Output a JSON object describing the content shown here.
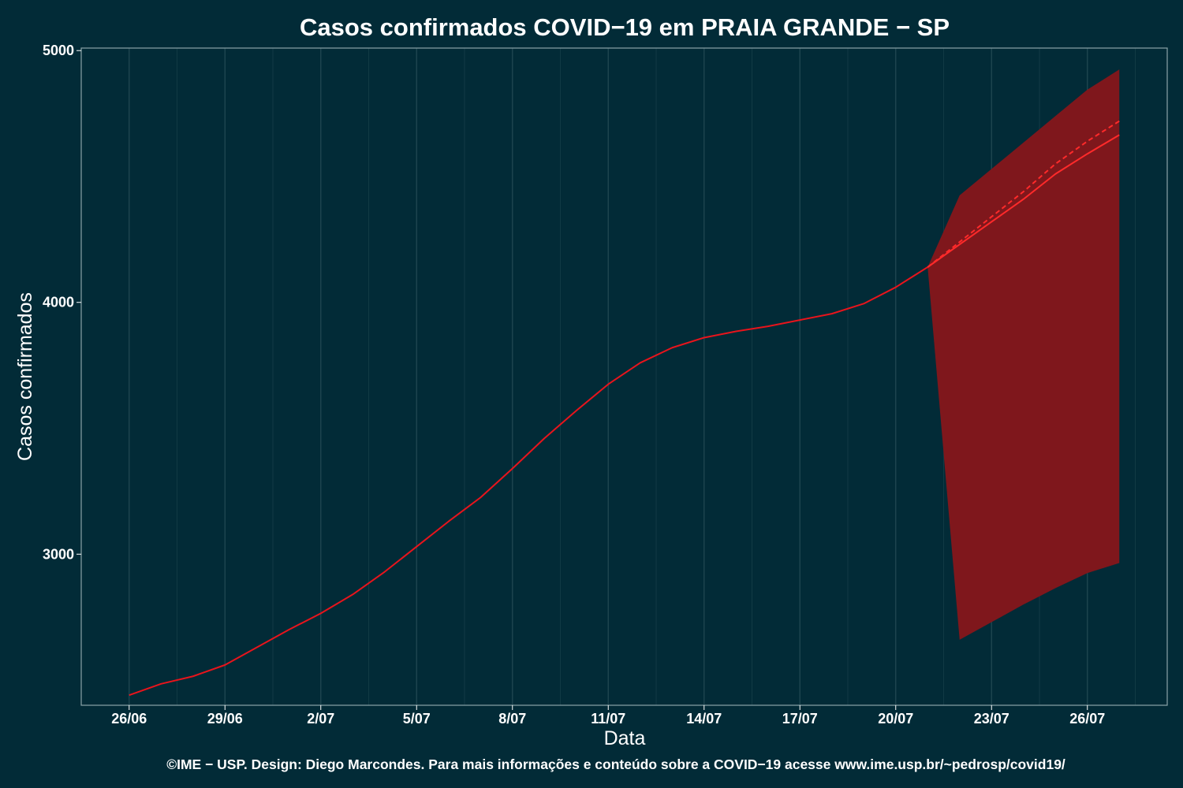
{
  "chart_data": {
    "type": "line",
    "title": "Casos confirmados COVID−19 em PRAIA GRANDE − SP",
    "xlabel": "Data",
    "ylabel": "Casos confirmados",
    "x_tick_labels": [
      "26/06",
      "29/06",
      "2/07",
      "5/07",
      "8/07",
      "11/07",
      "14/07",
      "17/07",
      "20/07",
      "23/07",
      "26/07"
    ],
    "x_tick_days": [
      0,
      3,
      6,
      9,
      12,
      15,
      18,
      21,
      24,
      27,
      30
    ],
    "y_ticks": [
      3000,
      4000,
      5000
    ],
    "xlim": [
      -1.5,
      32.5
    ],
    "ylim": [
      2400,
      5010
    ],
    "grid": true,
    "series": [
      {
        "kind": "observed",
        "color": "#e8141c",
        "x": [
          "26/06",
          "27/06",
          "28/06",
          "29/06",
          "30/06",
          "1/07",
          "2/07",
          "3/07",
          "4/07",
          "5/07",
          "6/07",
          "7/07",
          "8/07",
          "9/07",
          "10/07",
          "11/07",
          "12/07",
          "13/07",
          "14/07",
          "15/07",
          "16/07",
          "17/07",
          "18/07",
          "19/07",
          "20/07",
          "21/07"
        ],
        "values": [
          2440,
          2485,
          2515,
          2560,
          2630,
          2700,
          2765,
          2840,
          2930,
          3030,
          3130,
          3225,
          3340,
          3460,
          3570,
          3675,
          3760,
          3820,
          3860,
          3885,
          3905,
          3930,
          3955,
          3995,
          4060,
          4140
        ]
      },
      {
        "kind": "forecast",
        "color": "#ff2a2a",
        "x": [
          "21/07",
          "22/07",
          "23/07",
          "24/07",
          "25/07",
          "26/07",
          "27/07"
        ],
        "values": [
          4140,
          4230,
          4320,
          4410,
          4510,
          4590,
          4665
        ]
      },
      {
        "kind": "forecast-dashed",
        "color": "#ff2a2a",
        "x": [
          "21/07",
          "22/07",
          "23/07",
          "24/07",
          "25/07",
          "26/07",
          "27/07"
        ],
        "values": [
          4140,
          4240,
          4340,
          4440,
          4550,
          4640,
          4720
        ]
      }
    ],
    "interval": {
      "color": "#7f171c",
      "x": [
        "21/07",
        "22/07",
        "23/07",
        "24/07",
        "25/07",
        "26/07",
        "27/07"
      ],
      "lower": [
        4140,
        2660,
        2730,
        2800,
        2865,
        2925,
        2965
      ],
      "upper": [
        4140,
        4425,
        4530,
        4635,
        4740,
        4845,
        4925
      ]
    },
    "colors": {
      "background": "#022b37",
      "grid": "#1f4650",
      "panel_border": "#8aa3a8"
    }
  },
  "footer": "©IME − USP. Design: Diego Marcondes. Para mais informações e conteúdo sobre a COVID−19 acesse www.ime.usp.br/~pedrosp/covid19/"
}
